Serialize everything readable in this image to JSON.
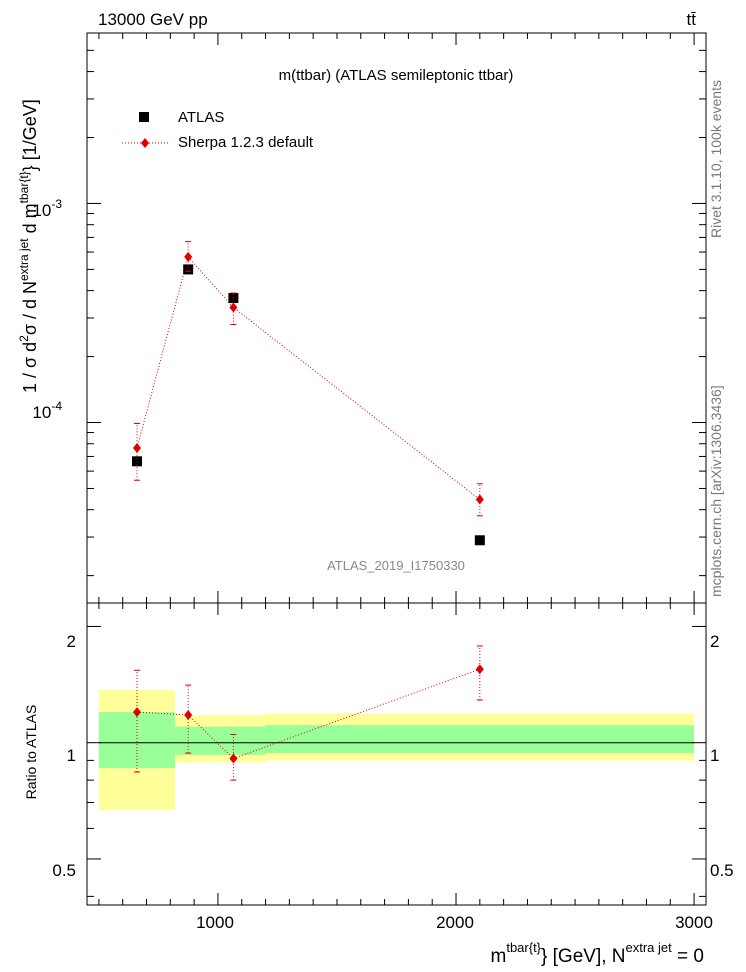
{
  "header": {
    "left": "13000 GeV pp",
    "right": "tt̄"
  },
  "side_text": {
    "rivet": "Rivet 3.1.10,  100k events",
    "mcplots": "mcplots.cern.ch [arXiv:1306.3436]"
  },
  "colors": {
    "atlas": "#000000",
    "sherpa": "#dd0000",
    "band_inner": "#99ff99",
    "band_outer": "#ffff99"
  },
  "chart_data": [
    {
      "type": "scatter",
      "title": "m(ttbar) (ATLAS semileptonic ttbar)",
      "watermark": "ATLAS_2019_I1750330",
      "ylabel": "1 / σ d²σ / d N^{extra jet} d m^{tbar{t}} [1/GeV]",
      "ylabel_parts": {
        "a": "1 / σ d",
        "sup1": "2",
        "b": "σ / d N",
        "sup2": "extra jet",
        "c": " d m",
        "sup3": "tbar{t}",
        "d": "} [1/GeV]"
      },
      "yscale": "log",
      "ylim": [
        1.5e-05,
        0.006
      ],
      "xlim": [
        450,
        3050
      ],
      "ytick_labels": {
        "m3": "10",
        "m3_exp": "-3",
        "m4": "10",
        "m4_exp": "-4"
      },
      "legend": {
        "placement": "top-left"
      },
      "series": [
        {
          "name": "ATLAS",
          "marker": "square",
          "x": [
            660,
            875,
            1065,
            2100
          ],
          "y": [
            6.65e-05,
            0.0005,
            0.00037,
            2.9e-05
          ]
        },
        {
          "name": "Sherpa 1.2.3 default",
          "marker": "diamond",
          "linestyle": "dotted",
          "x": [
            660,
            875,
            1065,
            2100
          ],
          "y": [
            7.65e-05,
            0.00057,
            0.000335,
            4.45e-05
          ],
          "y_err_low": [
            5.45e-05,
            0.00049,
            0.00028,
            3.75e-05
          ],
          "y_err_high": [
            9.9e-05,
            0.00067,
            0.00039,
            5.25e-05
          ]
        }
      ]
    },
    {
      "type": "scatter",
      "xlabel": "m^{tbar{t}} [GeV], N^{extra jet} = 0",
      "xlabel_parts": {
        "a": "m",
        "sup1": "tbar{t}",
        "b": "} [GeV], N",
        "sup2": "extra jet",
        "c": " = 0"
      },
      "ylabel": "Ratio to ATLAS",
      "ylim": [
        0.38,
        2.3
      ],
      "xlim": [
        450,
        3050
      ],
      "x_tick_labels": [
        "1000",
        "2000",
        "3000"
      ],
      "y_tick_labels": [
        "0.5",
        "1",
        "2"
      ],
      "reference_line": 1,
      "bands": [
        {
          "x0": 500,
          "x1": 820,
          "inner": [
            0.86,
            1.2
          ],
          "outer": [
            0.67,
            1.37
          ]
        },
        {
          "x0": 820,
          "x1": 1200,
          "inner": [
            0.93,
            1.1
          ],
          "outer": [
            0.89,
            1.18
          ]
        },
        {
          "x0": 1200,
          "x1": 3000,
          "inner": [
            0.94,
            1.11
          ],
          "outer": [
            0.9,
            1.19
          ]
        }
      ],
      "series": [
        {
          "name": "Sherpa 1.2.3 default",
          "marker": "diamond",
          "linestyle": "dotted",
          "x": [
            660,
            875,
            1065,
            2100
          ],
          "y": [
            1.2,
            1.18,
            0.91,
            1.55
          ],
          "y_err_low": [
            0.84,
            0.94,
            0.8,
            1.29
          ],
          "y_err_high": [
            1.54,
            1.41,
            1.05,
            1.78
          ]
        }
      ]
    }
  ]
}
